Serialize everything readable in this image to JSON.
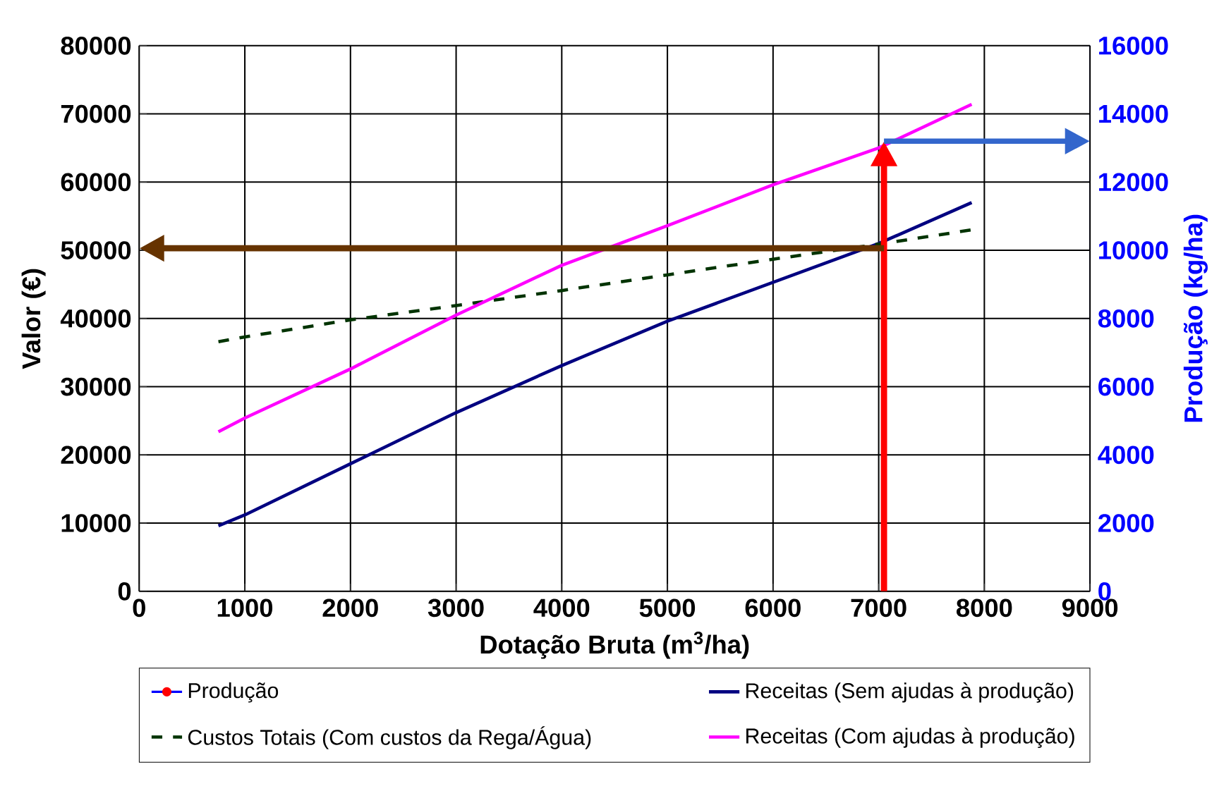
{
  "chart_data": {
    "type": "line",
    "xlabel": "Dotação Bruta (m$^{3}$/ha)",
    "ylabel": "Valor (€)",
    "y2label": "Produção (kg/ha)",
    "xlim": [
      0,
      9000
    ],
    "xticks": [
      0,
      1000,
      2000,
      3000,
      4000,
      5000,
      6000,
      7000,
      8000,
      9000
    ],
    "ylim": [
      0,
      80000
    ],
    "yticks": [
      0,
      10000,
      20000,
      30000,
      40000,
      50000,
      60000,
      70000,
      80000
    ],
    "y2lim": [
      0,
      16000
    ],
    "y2ticks": [
      0,
      2000,
      4000,
      6000,
      8000,
      10000,
      12000,
      14000,
      16000
    ],
    "grid": true,
    "legend": "bottom",
    "ref_lines": [
      {
        "axis": "x",
        "value": 7050,
        "color": "#ff0000"
      },
      {
        "axis": "y",
        "value": 50300,
        "color": "#663300"
      },
      {
        "axis": "y2",
        "value": 13200,
        "color": "#3366cc"
      }
    ],
    "x": [
      750,
      1000,
      2000,
      3000,
      4000,
      5000,
      6000,
      7000,
      7880
    ],
    "series": [
      {
        "name": "Produção",
        "color": "#0000ff",
        "axis": "y2",
        "marker": "circle",
        "values": [
          null,
          null,
          null,
          null,
          null,
          null,
          null,
          null,
          null
        ]
      },
      {
        "name": "Receitas (Sem ajudas à produção)",
        "color": "#000080",
        "line_style": "solid",
        "values": [
          9600,
          11200,
          18700,
          26200,
          33100,
          39600,
          45300,
          51000,
          57000
        ]
      },
      {
        "name": "Custos Totais (Com custos da Rega/Água)",
        "color": "#003300",
        "line_style": "dashed",
        "values": [
          36600,
          37300,
          39800,
          41900,
          44100,
          46400,
          48700,
          50900,
          53000
        ]
      },
      {
        "name": "Receitas (Com ajudas à produção)",
        "color": "#ff00ff",
        "line_style": "solid",
        "values": [
          23400,
          25400,
          32600,
          40500,
          47800,
          53600,
          59600,
          65000,
          71400
        ]
      }
    ]
  }
}
